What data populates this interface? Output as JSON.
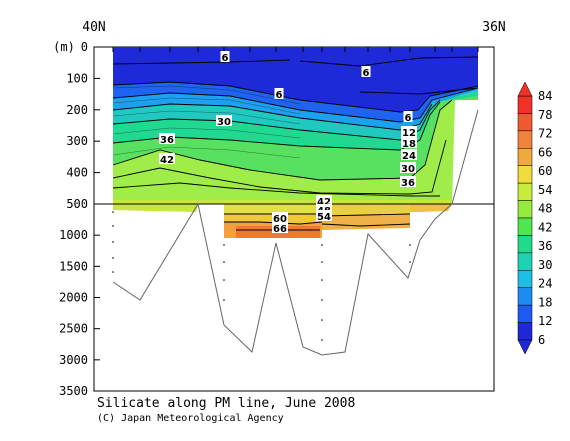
{
  "chart_data": {
    "type": "heatmap",
    "title": "Silicate along PM line, June 2008",
    "subtitle": "(C) Japan Meteorological Agency",
    "x_tick_labels": [
      "40N",
      "36N"
    ],
    "y_unit_label": "(m)",
    "y_ticks_upper": [
      0,
      100,
      200,
      300,
      400,
      500
    ],
    "y_ticks_lower": [
      1000,
      1500,
      2000,
      2500,
      3000,
      3500
    ],
    "colorbar": {
      "tick_labels": [
        "6",
        "12",
        "18",
        "24",
        "30",
        "36",
        "42",
        "48",
        "54",
        "60",
        "66",
        "72",
        "78",
        "84"
      ],
      "colors": [
        "#1e28d8",
        "#1e5af0",
        "#1e8cf0",
        "#1ebee6",
        "#1ed2b4",
        "#1edc8c",
        "#50e650",
        "#96ec3c",
        "#c8ec3c",
        "#f0dc3c",
        "#f0aa3c",
        "#f0823c",
        "#f05a32",
        "#f03228"
      ]
    },
    "contour_labels": [
      "6",
      "6",
      "6",
      "6",
      "12",
      "18",
      "24",
      "30",
      "36",
      "30",
      "36",
      "42",
      "42",
      "48",
      "54",
      "60",
      "66"
    ]
  }
}
